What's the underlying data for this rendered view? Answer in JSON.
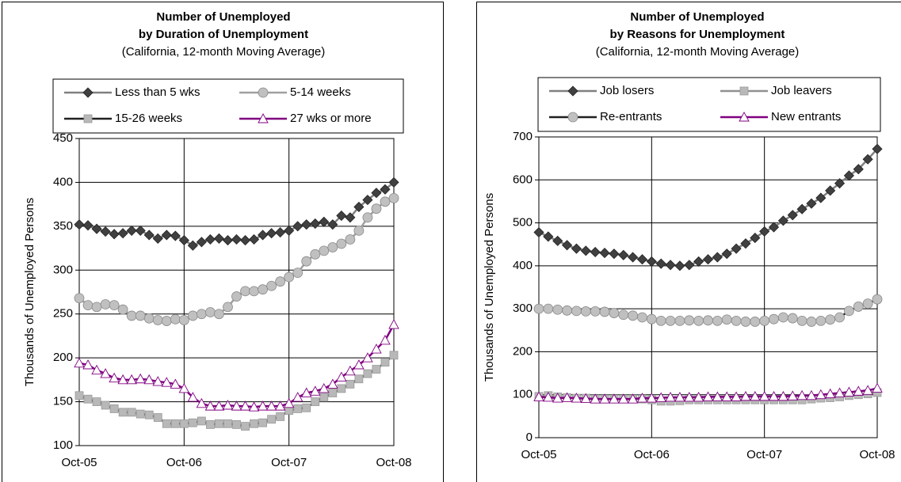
{
  "chart_data": [
    {
      "type": "line",
      "title": [
        "Number of Unemployed",
        "by Duration of Unemployment"
      ],
      "subtitle": "(California, 12-month Moving Average)",
      "y_label": "Thousands of Unemployed Persons",
      "categories": [
        "Oct-05",
        null,
        null,
        null,
        null,
        null,
        null,
        null,
        null,
        null,
        null,
        null,
        "Oct-06",
        null,
        null,
        null,
        null,
        null,
        null,
        null,
        null,
        null,
        null,
        null,
        "Oct-07",
        null,
        null,
        null,
        null,
        null,
        null,
        null,
        null,
        null,
        null,
        null,
        "Oct-08"
      ],
      "ylim": [
        100,
        450
      ],
      "yticks": [
        100,
        150,
        200,
        250,
        300,
        350,
        400,
        450
      ],
      "grid": true,
      "series": [
        {
          "name": "Less than 5 wks",
          "color": "#808080",
          "marker": "diamond",
          "marker_color": "#404040",
          "values": [
            352,
            351,
            347,
            344,
            341,
            342,
            345,
            345,
            340,
            336,
            340,
            339,
            334,
            328,
            332,
            335,
            336,
            334,
            335,
            334,
            335,
            340,
            342,
            343,
            345,
            350,
            352,
            353,
            355,
            352,
            362,
            360,
            372,
            380,
            388,
            392,
            400
          ]
        },
        {
          "name": "5-14 weeks",
          "color": "#a0a0a0",
          "marker": "circle",
          "marker_color": "#c0c0c0",
          "values": [
            268,
            260,
            258,
            261,
            260,
            255,
            248,
            248,
            245,
            243,
            242,
            244,
            243,
            248,
            250,
            252,
            250,
            258,
            270,
            276,
            276,
            278,
            282,
            287,
            292,
            297,
            310,
            318,
            322,
            326,
            330,
            335,
            345,
            360,
            370,
            378,
            382
          ]
        },
        {
          "name": "15-26 weeks",
          "color": "#202020",
          "marker": "square",
          "marker_color": "#b8b8b8",
          "values": [
            157,
            153,
            150,
            146,
            142,
            138,
            138,
            136,
            135,
            132,
            125,
            125,
            125,
            126,
            128,
            124,
            125,
            125,
            124,
            122,
            125,
            126,
            130,
            133,
            140,
            142,
            143,
            150,
            155,
            160,
            165,
            170,
            176,
            182,
            187,
            195,
            203
          ]
        },
        {
          "name": "27 wks or more",
          "color": "#800080",
          "marker": "triangle",
          "marker_color": "#ffffff",
          "values": [
            194,
            192,
            186,
            182,
            177,
            175,
            175,
            176,
            175,
            173,
            172,
            170,
            165,
            155,
            148,
            145,
            145,
            146,
            145,
            145,
            144,
            145,
            145,
            145,
            148,
            155,
            160,
            162,
            165,
            170,
            178,
            185,
            192,
            200,
            210,
            220,
            238
          ]
        }
      ]
    },
    {
      "type": "line",
      "title": [
        "Number of Unemployed",
        "by Reasons for Unemployment"
      ],
      "subtitle": "(California, 12-month Moving Average)",
      "y_label": "Thousands of Unemployed Persons",
      "categories": [
        "Oct-05",
        null,
        null,
        null,
        null,
        null,
        null,
        null,
        null,
        null,
        null,
        null,
        "Oct-06",
        null,
        null,
        null,
        null,
        null,
        null,
        null,
        null,
        null,
        null,
        null,
        "Oct-07",
        null,
        null,
        null,
        null,
        null,
        null,
        null,
        null,
        null,
        null,
        null,
        "Oct-08"
      ],
      "ylim": [
        0,
        700
      ],
      "yticks": [
        0,
        100,
        200,
        300,
        400,
        500,
        600,
        700
      ],
      "grid": true,
      "series": [
        {
          "name": "Job losers",
          "color": "#808080",
          "marker": "diamond",
          "marker_color": "#404040",
          "values": [
            478,
            468,
            458,
            448,
            440,
            435,
            432,
            430,
            428,
            425,
            420,
            415,
            410,
            405,
            402,
            400,
            402,
            410,
            415,
            420,
            428,
            440,
            452,
            465,
            480,
            490,
            505,
            518,
            532,
            545,
            558,
            575,
            592,
            610,
            625,
            648,
            672
          ]
        },
        {
          "name": "Job leavers",
          "color": "#909090",
          "marker": "square",
          "marker_color": "#b8b8b8",
          "values": [
            96,
            98,
            95,
            93,
            92,
            92,
            90,
            90,
            90,
            90,
            90,
            90,
            88,
            85,
            85,
            86,
            88,
            88,
            88,
            88,
            88,
            88,
            88,
            88,
            88,
            88,
            88,
            88,
            88,
            90,
            92,
            93,
            95,
            98,
            100,
            102,
            105
          ]
        },
        {
          "name": "Re-entrants",
          "color": "#202020",
          "marker": "circle",
          "marker_color": "#c0c0c0",
          "values": [
            300,
            300,
            298,
            296,
            295,
            294,
            294,
            293,
            290,
            286,
            284,
            280,
            276,
            272,
            272,
            272,
            273,
            272,
            273,
            272,
            275,
            272,
            270,
            270,
            272,
            276,
            280,
            278,
            272,
            270,
            272,
            275,
            280,
            295,
            305,
            312,
            322
          ]
        },
        {
          "name": "New entrants",
          "color": "#800080",
          "marker": "triangle",
          "marker_color": "#ffffff",
          "values": [
            95,
            94,
            92,
            93,
            92,
            91,
            90,
            90,
            90,
            90,
            90,
            92,
            92,
            93,
            94,
            94,
            94,
            94,
            95,
            95,
            95,
            95,
            96,
            96,
            96,
            96,
            96,
            97,
            98,
            98,
            100,
            102,
            104,
            106,
            108,
            110,
            115
          ]
        }
      ]
    }
  ]
}
